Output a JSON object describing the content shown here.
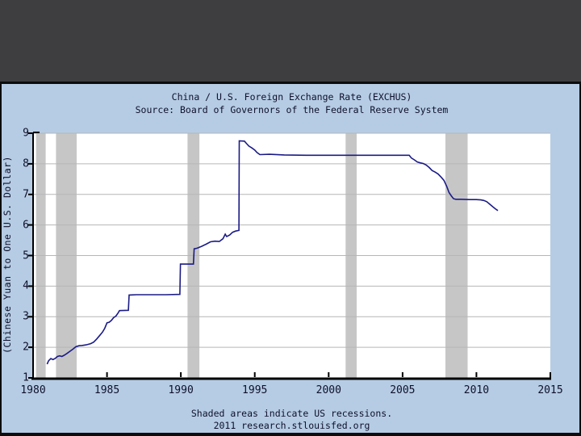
{
  "theme": {
    "top_band_color": "#3e3e40",
    "panel_color": "#b5cce4",
    "border_color": "#0c0c0c",
    "text_color": "#10102a"
  },
  "header": {
    "title": "China / U.S. Foreign Exchange Rate (EXCHUS)",
    "subtitle": "Source: Board of Governors of the Federal Reserve System"
  },
  "footer": {
    "note": "Shaded areas indicate US recessions.",
    "credit": "2011 research.stlouisfed.org"
  },
  "chart_data": {
    "type": "line",
    "title": "China / U.S. Foreign Exchange Rate (EXCHUS)",
    "source": "Board of Governors of the Federal Reserve System",
    "xlabel": "",
    "ylabel": "(Chinese Yuan to One U.S. Dollar)",
    "xlim": [
      1980,
      2015
    ],
    "ylim": [
      1,
      9
    ],
    "x_ticks": [
      1980,
      1985,
      1990,
      1995,
      2000,
      2005,
      2010,
      2015
    ],
    "y_ticks": [
      1,
      2,
      3,
      4,
      5,
      6,
      7,
      8,
      9
    ],
    "grid": "horizontal",
    "legend": "none",
    "line_color": "#1b1b86",
    "grid_color": "#b6b6b6",
    "axis_color": "#000000",
    "plot_bg_color": "#ffffff",
    "recession_band_color": "#c6c6c6",
    "recessions_years": [
      [
        1980.2,
        1980.85
      ],
      [
        1981.55,
        1982.95
      ],
      [
        1990.45,
        1991.25
      ],
      [
        2001.15,
        2001.9
      ],
      [
        2007.9,
        2009.4
      ]
    ],
    "series": [
      {
        "name": "EXCHUS",
        "points": [
          [
            1980.95,
            1.45
          ],
          [
            1981.05,
            1.56
          ],
          [
            1981.2,
            1.63
          ],
          [
            1981.35,
            1.6
          ],
          [
            1981.5,
            1.64
          ],
          [
            1981.65,
            1.7
          ],
          [
            1981.8,
            1.72
          ],
          [
            1981.95,
            1.7
          ],
          [
            1982.1,
            1.74
          ],
          [
            1982.3,
            1.8
          ],
          [
            1982.5,
            1.87
          ],
          [
            1982.7,
            1.94
          ],
          [
            1982.9,
            2.02
          ],
          [
            1983.1,
            2.05
          ],
          [
            1983.3,
            2.06
          ],
          [
            1983.6,
            2.08
          ],
          [
            1983.9,
            2.12
          ],
          [
            1984.1,
            2.17
          ],
          [
            1984.3,
            2.27
          ],
          [
            1984.5,
            2.38
          ],
          [
            1984.7,
            2.5
          ],
          [
            1984.85,
            2.62
          ],
          [
            1985.0,
            2.8
          ],
          [
            1985.15,
            2.82
          ],
          [
            1985.3,
            2.88
          ],
          [
            1985.45,
            2.97
          ],
          [
            1985.6,
            3.02
          ],
          [
            1985.75,
            3.12
          ],
          [
            1985.85,
            3.2
          ],
          [
            1986.45,
            3.21
          ],
          [
            1986.5,
            3.71
          ],
          [
            1987.0,
            3.72
          ],
          [
            1988.0,
            3.72
          ],
          [
            1989.0,
            3.72
          ],
          [
            1989.93,
            3.73
          ],
          [
            1989.97,
            4.72
          ],
          [
            1990.85,
            4.72
          ],
          [
            1990.9,
            5.22
          ],
          [
            1991.1,
            5.24
          ],
          [
            1991.4,
            5.3
          ],
          [
            1991.7,
            5.37
          ],
          [
            1992.0,
            5.45
          ],
          [
            1992.3,
            5.47
          ],
          [
            1992.6,
            5.46
          ],
          [
            1992.85,
            5.55
          ],
          [
            1993.0,
            5.7
          ],
          [
            1993.1,
            5.62
          ],
          [
            1993.3,
            5.67
          ],
          [
            1993.5,
            5.76
          ],
          [
            1993.7,
            5.8
          ],
          [
            1993.93,
            5.82
          ],
          [
            1993.95,
            8.75
          ],
          [
            1994.3,
            8.74
          ],
          [
            1994.45,
            8.66
          ],
          [
            1994.6,
            8.58
          ],
          [
            1994.8,
            8.52
          ],
          [
            1995.0,
            8.45
          ],
          [
            1995.15,
            8.37
          ],
          [
            1995.35,
            8.3
          ],
          [
            1996.0,
            8.31
          ],
          [
            1997.0,
            8.29
          ],
          [
            1998.5,
            8.28
          ],
          [
            2000.0,
            8.28
          ],
          [
            2002.0,
            8.28
          ],
          [
            2004.0,
            8.28
          ],
          [
            2005.45,
            8.28
          ],
          [
            2005.6,
            8.19
          ],
          [
            2005.8,
            8.13
          ],
          [
            2006.0,
            8.06
          ],
          [
            2006.2,
            8.03
          ],
          [
            2006.4,
            8.01
          ],
          [
            2006.6,
            7.96
          ],
          [
            2006.8,
            7.88
          ],
          [
            2007.0,
            7.78
          ],
          [
            2007.2,
            7.73
          ],
          [
            2007.4,
            7.67
          ],
          [
            2007.6,
            7.57
          ],
          [
            2007.8,
            7.46
          ],
          [
            2008.0,
            7.25
          ],
          [
            2008.15,
            7.06
          ],
          [
            2008.3,
            6.95
          ],
          [
            2008.45,
            6.86
          ],
          [
            2008.6,
            6.84
          ],
          [
            2009.0,
            6.84
          ],
          [
            2009.5,
            6.83
          ],
          [
            2010.0,
            6.83
          ],
          [
            2010.3,
            6.82
          ],
          [
            2010.5,
            6.8
          ],
          [
            2010.7,
            6.76
          ],
          [
            2010.85,
            6.7
          ],
          [
            2011.0,
            6.64
          ],
          [
            2011.15,
            6.58
          ],
          [
            2011.3,
            6.52
          ],
          [
            2011.45,
            6.47
          ]
        ]
      }
    ]
  }
}
